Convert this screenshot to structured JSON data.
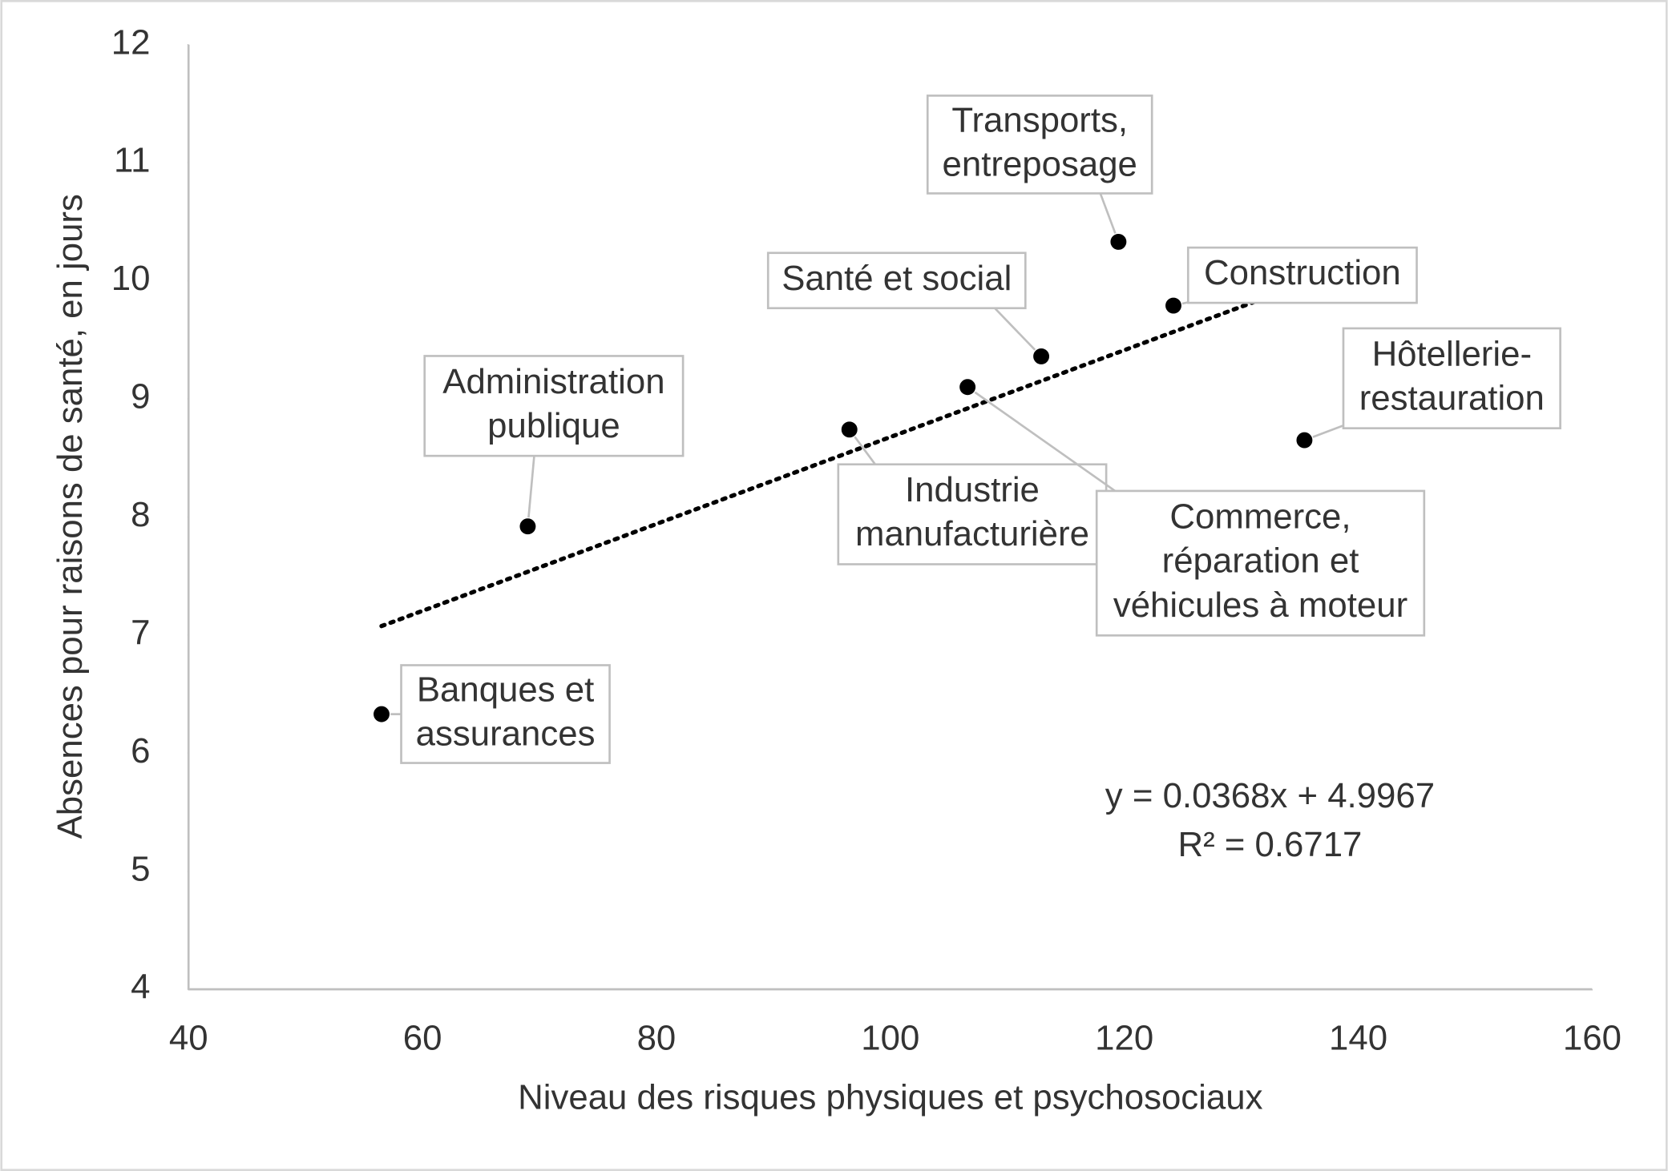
{
  "chart_data": {
    "type": "scatter",
    "x_label": "Niveau des risques physiques et psychosociaux",
    "y_label": "Absences pour raisons de santé, en jours",
    "x": [
      56.5,
      69.0,
      96.5,
      106.6,
      112.9,
      119.5,
      124.2,
      135.4
    ],
    "values": [
      6.33,
      7.92,
      8.74,
      9.1,
      9.36,
      10.33,
      9.79,
      8.65
    ],
    "labels": [
      [
        "Banques et",
        "assurances"
      ],
      [
        "Administration",
        "publique"
      ],
      [
        "Industrie",
        "manufacturière"
      ],
      [
        "Commerce,",
        "réparation et",
        "véhicules à moteur"
      ],
      [
        "Santé et social"
      ],
      [
        "Transports,",
        "entreposage"
      ],
      [
        "Construction"
      ],
      [
        "Hôtellerie-",
        "restauration"
      ]
    ],
    "color": "#000000",
    "xlim": [
      40,
      160
    ],
    "xticks": [
      40,
      60,
      80,
      100,
      120,
      140,
      160
    ],
    "ylim": [
      4,
      12
    ],
    "yticks": [
      4,
      5,
      6,
      7,
      8,
      9,
      10,
      11,
      12
    ],
    "grid": false,
    "trendline": {
      "slope": 0.0368,
      "intercept": 4.9967,
      "equation": "y = 0.0368x + 4.9967",
      "r2": 0.6717,
      "r2_label": "R² = 0.6717"
    }
  }
}
